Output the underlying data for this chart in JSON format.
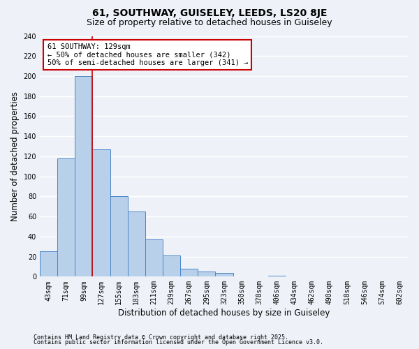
{
  "title": "61, SOUTHWAY, GUISELEY, LEEDS, LS20 8JE",
  "subtitle": "Size of property relative to detached houses in Guiseley",
  "xlabel": "Distribution of detached houses by size in Guiseley",
  "ylabel": "Number of detached properties",
  "footnote1": "Contains HM Land Registry data © Crown copyright and database right 2025.",
  "footnote2": "Contains public sector information licensed under the Open Government Licence v3.0.",
  "bin_labels": [
    "43sqm",
    "71sqm",
    "99sqm",
    "127sqm",
    "155sqm",
    "183sqm",
    "211sqm",
    "239sqm",
    "267sqm",
    "295sqm",
    "323sqm",
    "350sqm",
    "378sqm",
    "406sqm",
    "434sqm",
    "462sqm",
    "490sqm",
    "518sqm",
    "546sqm",
    "574sqm",
    "602sqm"
  ],
  "bar_values": [
    25,
    118,
    200,
    127,
    80,
    65,
    37,
    21,
    8,
    5,
    4,
    0,
    0,
    1,
    0,
    0,
    0,
    0,
    0,
    0,
    0
  ],
  "bar_color": "#b8d0ea",
  "bar_edge_color": "#4a86c8",
  "vline_index": 3,
  "vline_color": "#cc0000",
  "annotation_line1": "61 SOUTHWAY: 129sqm",
  "annotation_line2": "← 50% of detached houses are smaller (342)",
  "annotation_line3": "50% of semi-detached houses are larger (341) →",
  "annotation_box_color": "#ffffff",
  "annotation_box_edge": "#cc0000",
  "ylim": [
    0,
    240
  ],
  "yticks": [
    0,
    20,
    40,
    60,
    80,
    100,
    120,
    140,
    160,
    180,
    200,
    220,
    240
  ],
  "background_color": "#eef2f8",
  "plot_bg_color": "#eef2f8",
  "grid_color": "#ffffff",
  "title_fontsize": 10,
  "subtitle_fontsize": 9,
  "axis_label_fontsize": 8.5,
  "tick_fontsize": 7,
  "annotation_fontsize": 7.5,
  "footnote_fontsize": 6
}
